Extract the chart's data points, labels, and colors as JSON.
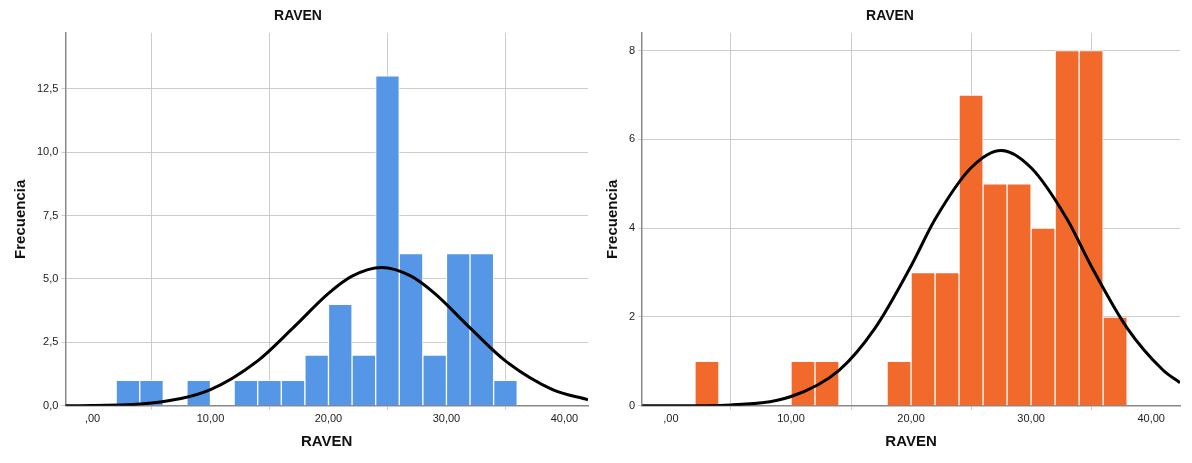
{
  "chart_data": [
    {
      "type": "histogram",
      "title": "RAVEN",
      "xlabel": "RAVEN",
      "ylabel": "Frecuencia",
      "xlim": [
        -2.3,
        42
      ],
      "xticks": [
        {
          "value": 0,
          "label": ",00"
        },
        {
          "value": 10,
          "label": "10,00"
        },
        {
          "value": 20,
          "label": "20,00"
        },
        {
          "value": 30,
          "label": "30,00"
        },
        {
          "value": 40,
          "label": "40,00"
        }
      ],
      "ylim": [
        0,
        14.7
      ],
      "yticks": [
        {
          "value": 0,
          "label": "0,0"
        },
        {
          "value": 2.5,
          "label": "2,5"
        },
        {
          "value": 5,
          "label": "5,0"
        },
        {
          "value": 7.5,
          "label": "7,5"
        },
        {
          "value": 10,
          "label": "10,0"
        },
        {
          "value": 12.5,
          "label": "12,5"
        }
      ],
      "grid": true,
      "legend": false,
      "marker": "none",
      "series": [
        {
          "color": "#5596e6",
          "bins": [
            2,
            4,
            6,
            8,
            10,
            12,
            14,
            16,
            18,
            20,
            22,
            24,
            26,
            28,
            30,
            32,
            34,
            36
          ],
          "values": [
            1,
            1,
            0,
            1,
            0,
            1,
            1,
            1,
            2,
            4,
            2,
            13,
            6,
            2,
            6,
            6,
            1
          ]
        },
        {
          "type": "line",
          "color": "#000000",
          "x": [
            -2.3,
            0,
            5,
            10,
            14,
            17,
            20,
            22,
            24.5,
            27,
            29,
            32,
            35,
            39,
            42
          ],
          "values": [
            0,
            0.01,
            0.11,
            0.64,
            1.77,
            3.07,
            4.43,
            5.11,
            5.45,
            5.11,
            4.43,
            3.07,
            1.77,
            0.64,
            0.24
          ]
        }
      ]
    },
    {
      "type": "histogram",
      "title": "RAVEN",
      "xlabel": "RAVEN",
      "ylabel": "Frecuencia",
      "xlim": [
        -2.4,
        42.4
      ],
      "xticks": [
        {
          "value": 0,
          "label": ",00"
        },
        {
          "value": 10,
          "label": "10,00"
        },
        {
          "value": 20,
          "label": "20,00"
        },
        {
          "value": 30,
          "label": "30,00"
        },
        {
          "value": 40,
          "label": "40,00"
        }
      ],
      "ylim": [
        0,
        8.4
      ],
      "yticks": [
        0,
        2,
        4,
        6,
        8
      ],
      "grid": true,
      "legend": false,
      "marker": "none",
      "series": [
        {
          "color": "#f26a2b",
          "bins": [
            2,
            4,
            6,
            8,
            10,
            12,
            14,
            16,
            18,
            20,
            22,
            24,
            26,
            28,
            30,
            32,
            34,
            36,
            38
          ],
          "values": [
            1,
            0,
            0,
            0,
            1,
            1,
            0,
            0,
            1,
            3,
            3,
            7,
            5,
            5,
            4,
            8,
            8,
            2
          ]
        },
        {
          "type": "line",
          "color": "#000000",
          "x": [
            -2.4,
            0,
            5,
            10,
            14,
            17,
            20,
            22,
            25,
            27.5,
            30,
            33,
            35,
            38,
            41,
            42.4
          ],
          "values": [
            0,
            0,
            0.02,
            0.21,
            0.8,
            1.75,
            3.15,
            4.2,
            5.36,
            5.75,
            5.36,
            4.2,
            3.15,
            1.75,
            0.8,
            0.52
          ]
        }
      ]
    }
  ]
}
